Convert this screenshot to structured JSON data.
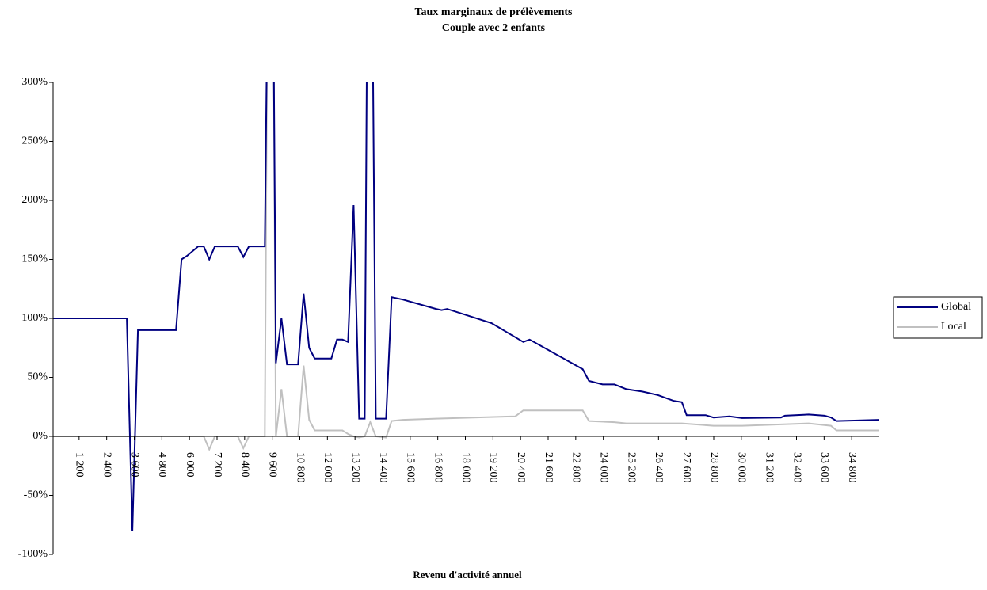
{
  "chart_data": {
    "type": "line",
    "title": "Taux marginaux de prélèvements",
    "subtitle": "Couple avec 2 enfants",
    "x_label": "Revenu d'activité annuel",
    "xlim": [
      0,
      36000
    ],
    "xticks": [
      {
        "value": 1200,
        "label": "1 200"
      },
      {
        "value": 2400,
        "label": "2 400"
      },
      {
        "value": 3600,
        "label": "3 600"
      },
      {
        "value": 4800,
        "label": "4 800"
      },
      {
        "value": 6000,
        "label": "6 000"
      },
      {
        "value": 7200,
        "label": "7 200"
      },
      {
        "value": 8400,
        "label": "8 400"
      },
      {
        "value": 9600,
        "label": "9 600"
      },
      {
        "value": 10800,
        "label": "10 800"
      },
      {
        "value": 12000,
        "label": "12 000"
      },
      {
        "value": 13200,
        "label": "13 200"
      },
      {
        "value": 14400,
        "label": "14 400"
      },
      {
        "value": 15600,
        "label": "15 600"
      },
      {
        "value": 16800,
        "label": "16 800"
      },
      {
        "value": 18000,
        "label": "18 000"
      },
      {
        "value": 19200,
        "label": "19 200"
      },
      {
        "value": 20400,
        "label": "20 400"
      },
      {
        "value": 21600,
        "label": "21 600"
      },
      {
        "value": 22800,
        "label": "22 800"
      },
      {
        "value": 24000,
        "label": "24 000"
      },
      {
        "value": 25200,
        "label": "25 200"
      },
      {
        "value": 26400,
        "label": "26 400"
      },
      {
        "value": 27600,
        "label": "27 600"
      },
      {
        "value": 28800,
        "label": "28 800"
      },
      {
        "value": 30000,
        "label": "30 000"
      },
      {
        "value": 31200,
        "label": "31 200"
      },
      {
        "value": 32400,
        "label": "32 400"
      },
      {
        "value": 33600,
        "label": "33 600"
      },
      {
        "value": 34800,
        "label": "34 800"
      }
    ],
    "ylim": [
      -100,
      300
    ],
    "yticks": [
      {
        "value": -100,
        "label": "-100%"
      },
      {
        "value": -50,
        "label": "-50%"
      },
      {
        "value": 0,
        "label": "0%"
      },
      {
        "value": 50,
        "label": "50%"
      },
      {
        "value": 100,
        "label": "100%"
      },
      {
        "value": 150,
        "label": "150%"
      },
      {
        "value": 200,
        "label": "200%"
      },
      {
        "value": 250,
        "label": "250%"
      },
      {
        "value": 300,
        "label": "300%"
      }
    ],
    "legend": "right",
    "series": [
      {
        "name": "Global",
        "color": "#000080",
        "x": [
          0,
          3276,
          3517,
          3759,
          5414,
          5655,
          5897,
          6380,
          6620,
          6862,
          7103,
          8103,
          8345,
          8586,
          9276,
          9380,
          9655,
          9759,
          10000,
          10241,
          10724,
          10966,
          11207,
          11448,
          12172,
          12414,
          12655,
          12897,
          13138,
          13379,
          13621,
          13724,
          13966,
          14103,
          14552,
          14793,
          15276,
          16724,
          16966,
          17207,
          19138,
          20172,
          20517,
          20793,
          23103,
          23379,
          23966,
          24483,
          25000,
          25690,
          26379,
          27069,
          27414,
          27621,
          28448,
          28793,
          29483,
          30034,
          31724,
          31897,
          32931,
          33621,
          33897,
          34138,
          36000
        ],
        "values": [
          100,
          100,
          -80,
          90,
          90,
          150,
          153,
          161,
          161,
          150,
          161,
          161,
          152,
          161,
          161,
          350,
          350,
          62,
          100,
          61,
          61,
          121,
          75,
          66,
          66,
          82,
          82,
          80,
          196,
          15,
          15,
          350,
          350,
          15,
          15,
          118,
          116,
          108,
          107,
          108,
          96,
          84,
          80,
          82,
          57,
          47,
          44,
          44,
          40,
          38,
          35,
          30,
          29,
          18,
          18,
          16,
          17,
          15.5,
          16,
          17.5,
          18.5,
          17.5,
          16,
          13,
          14
        ]
      },
      {
        "name": "Local",
        "color": "#c0c0c0",
        "x": [
          0,
          6620,
          6862,
          7103,
          8103,
          8345,
          8586,
          9276,
          9380,
          9655,
          9759,
          10000,
          10241,
          10724,
          10966,
          11207,
          11448,
          12655,
          12897,
          13138,
          13379,
          13621,
          13862,
          14103,
          14552,
          14793,
          15276,
          16724,
          20172,
          20517,
          23103,
          23379,
          24483,
          25000,
          27414,
          28793,
          30034,
          32931,
          33897,
          34138,
          36000
        ],
        "values": [
          0,
          0,
          -11,
          0,
          0,
          -10,
          0,
          0,
          350,
          350,
          0,
          40,
          0,
          0,
          60,
          14,
          5,
          5,
          2,
          0,
          -1,
          0,
          12,
          0,
          -1,
          13,
          14,
          15,
          17,
          22,
          22,
          13,
          12,
          11,
          11,
          9,
          9,
          11,
          9,
          5,
          5
        ]
      }
    ]
  }
}
